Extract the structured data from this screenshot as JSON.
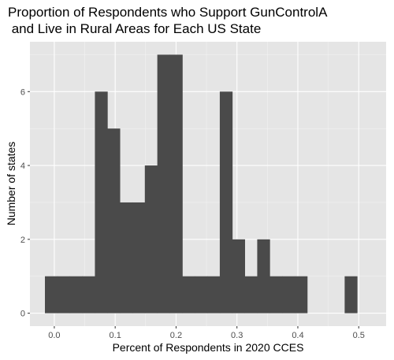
{
  "chart_data": {
    "type": "bar",
    "title_lines": [
      "Proportion of Respondents who Support GunControlA",
      " and Live in Rural Areas for Each US State"
    ],
    "xlabel": "Percent of Respondents in 2020 CCES",
    "ylabel": "Number of states",
    "xlim": [
      -0.04,
      0.545
    ],
    "ylim": [
      -0.35,
      7.35
    ],
    "x_ticks": [
      0.0,
      0.1,
      0.2,
      0.3,
      0.4,
      0.5
    ],
    "x_tick_labels": [
      "0.0",
      "0.1",
      "0.2",
      "0.3",
      "0.4",
      "0.5"
    ],
    "y_ticks": [
      0,
      2,
      4,
      6
    ],
    "y_tick_labels": [
      "0",
      "2",
      "4",
      "6"
    ],
    "grid": true,
    "colors": {
      "panel": "#e5e5e5",
      "grid_major": "#ffffff",
      "grid_minor": "#f2f2f2",
      "bar": "#4a4a4a"
    },
    "bins": [
      {
        "x0": -0.0154,
        "x1": 0.0051,
        "count": 1
      },
      {
        "x0": 0.0051,
        "x1": 0.0256,
        "count": 1
      },
      {
        "x0": 0.0256,
        "x1": 0.0462,
        "count": 1
      },
      {
        "x0": 0.0462,
        "x1": 0.0667,
        "count": 1
      },
      {
        "x0": 0.0667,
        "x1": 0.0872,
        "count": 6
      },
      {
        "x0": 0.0872,
        "x1": 0.1077,
        "count": 5
      },
      {
        "x0": 0.1077,
        "x1": 0.1282,
        "count": 3
      },
      {
        "x0": 0.1282,
        "x1": 0.1487,
        "count": 3
      },
      {
        "x0": 0.1487,
        "x1": 0.1692,
        "count": 4
      },
      {
        "x0": 0.1692,
        "x1": 0.1897,
        "count": 7
      },
      {
        "x0": 0.1897,
        "x1": 0.2103,
        "count": 7
      },
      {
        "x0": 0.2103,
        "x1": 0.2308,
        "count": 1
      },
      {
        "x0": 0.2308,
        "x1": 0.2513,
        "count": 1
      },
      {
        "x0": 0.2513,
        "x1": 0.2718,
        "count": 1
      },
      {
        "x0": 0.2718,
        "x1": 0.2923,
        "count": 6
      },
      {
        "x0": 0.2923,
        "x1": 0.3128,
        "count": 2
      },
      {
        "x0": 0.3128,
        "x1": 0.3333,
        "count": 1
      },
      {
        "x0": 0.3333,
        "x1": 0.3538,
        "count": 2
      },
      {
        "x0": 0.3538,
        "x1": 0.3744,
        "count": 1
      },
      {
        "x0": 0.3744,
        "x1": 0.3949,
        "count": 1
      },
      {
        "x0": 0.3949,
        "x1": 0.4154,
        "count": 1
      },
      {
        "x0": 0.4154,
        "x1": 0.4359,
        "count": 0
      },
      {
        "x0": 0.4359,
        "x1": 0.4564,
        "count": 0
      },
      {
        "x0": 0.4564,
        "x1": 0.4769,
        "count": 0
      },
      {
        "x0": 0.4769,
        "x1": 0.4974,
        "count": 1
      }
    ]
  }
}
